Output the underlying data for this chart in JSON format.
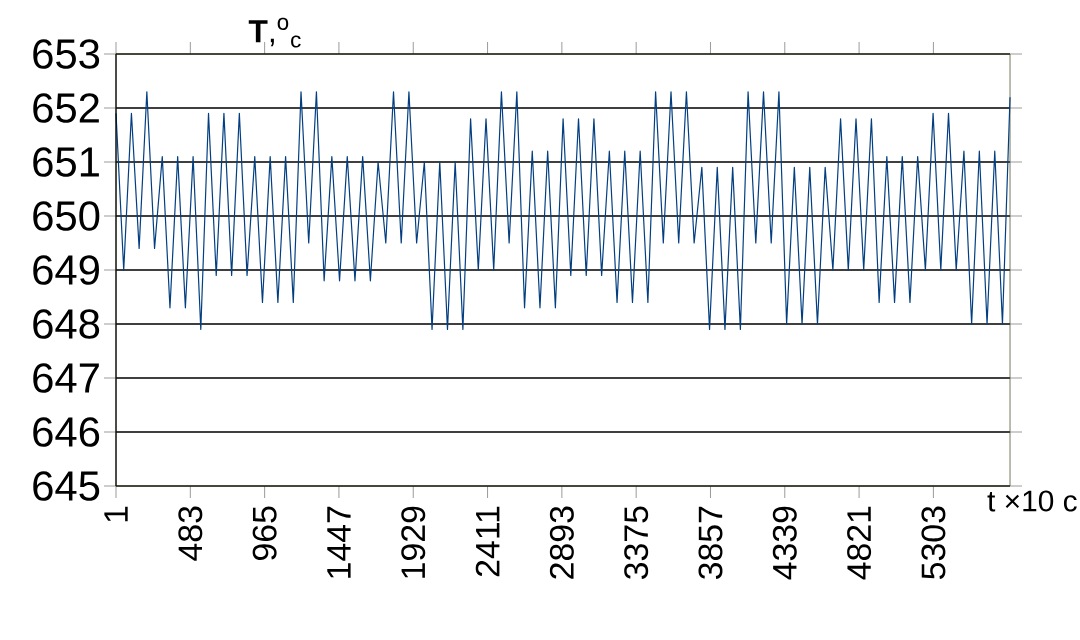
{
  "chart_data": {
    "type": "line",
    "ylabel": "**T**,$^{o}$$_{c}$",
    "xlabel": "t ×10 c",
    "xlim": [
      1,
      5800
    ],
    "xticks": [
      1,
      483,
      965,
      1447,
      1929,
      2411,
      2893,
      3375,
      3857,
      4339,
      4821,
      5303
    ],
    "ylim": [
      645,
      653
    ],
    "yticks": [
      645,
      646,
      647,
      648,
      649,
      650,
      651,
      652,
      653
    ],
    "grid": "y",
    "series": [
      {
        "color": "#033f80",
        "x": [
          1,
          51,
          101,
          151,
          201,
          251,
          301,
          351,
          401,
          451,
          501,
          551,
          601,
          651,
          701,
          751,
          801,
          851,
          901,
          951,
          1001,
          1051,
          1101,
          1151,
          1201,
          1251,
          1301,
          1351,
          1401,
          1451,
          1501,
          1551,
          1601,
          1651,
          1701,
          1751,
          1801,
          1851,
          1901,
          1951,
          2001,
          2051,
          2101,
          2151,
          2201,
          2251,
          2301,
          2351,
          2401,
          2451,
          2501,
          2551,
          2601,
          2651,
          2701,
          2751,
          2801,
          2851,
          2901,
          2951,
          3001,
          3051,
          3101,
          3151,
          3201,
          3251,
          3301,
          3351,
          3401,
          3451,
          3501,
          3551,
          3601,
          3651,
          3701,
          3751,
          3801,
          3851,
          3901,
          3951,
          4001,
          4051,
          4101,
          4151,
          4201,
          4251,
          4301,
          4351,
          4401,
          4451,
          4501,
          4551,
          4601,
          4651,
          4701,
          4751,
          4801,
          4851,
          4901,
          4951,
          5001,
          5051,
          5101,
          5151,
          5201,
          5251,
          5301,
          5351,
          5401,
          5451,
          5501,
          5551,
          5601,
          5651,
          5701,
          5751,
          5800
        ],
        "values": [
          651.9,
          649.0,
          651.9,
          649.4,
          652.3,
          649.4,
          651.1,
          648.3,
          651.1,
          648.3,
          651.1,
          647.9,
          651.9,
          648.9,
          651.9,
          648.9,
          651.9,
          648.9,
          651.1,
          648.4,
          651.1,
          648.4,
          651.1,
          648.4,
          652.3,
          649.5,
          652.3,
          648.8,
          651.1,
          648.8,
          651.1,
          648.8,
          651.1,
          648.8,
          651.0,
          649.5,
          652.3,
          649.5,
          652.3,
          649.5,
          651.0,
          647.9,
          651.0,
          647.9,
          651.0,
          647.9,
          651.8,
          649.0,
          651.8,
          649.0,
          652.3,
          649.5,
          652.3,
          648.3,
          651.2,
          648.3,
          651.2,
          648.3,
          651.8,
          648.9,
          651.8,
          648.9,
          651.8,
          648.9,
          651.2,
          648.4,
          651.2,
          648.4,
          651.2,
          648.4,
          652.3,
          649.5,
          652.3,
          649.5,
          652.3,
          649.5,
          650.9,
          647.9,
          650.9,
          647.9,
          650.9,
          647.9,
          652.3,
          649.5,
          652.3,
          649.5,
          652.3,
          648.0,
          650.9,
          648.0,
          650.9,
          648.0,
          650.9,
          649.0,
          651.8,
          649.0,
          651.8,
          649.0,
          651.8,
          648.4,
          651.1,
          648.4,
          651.1,
          648.4,
          651.1,
          649.0,
          651.9,
          649.0,
          651.9,
          649.0,
          651.2,
          648.0,
          651.2,
          648.0,
          651.2,
          648.0,
          652.2
        ]
      }
    ]
  }
}
